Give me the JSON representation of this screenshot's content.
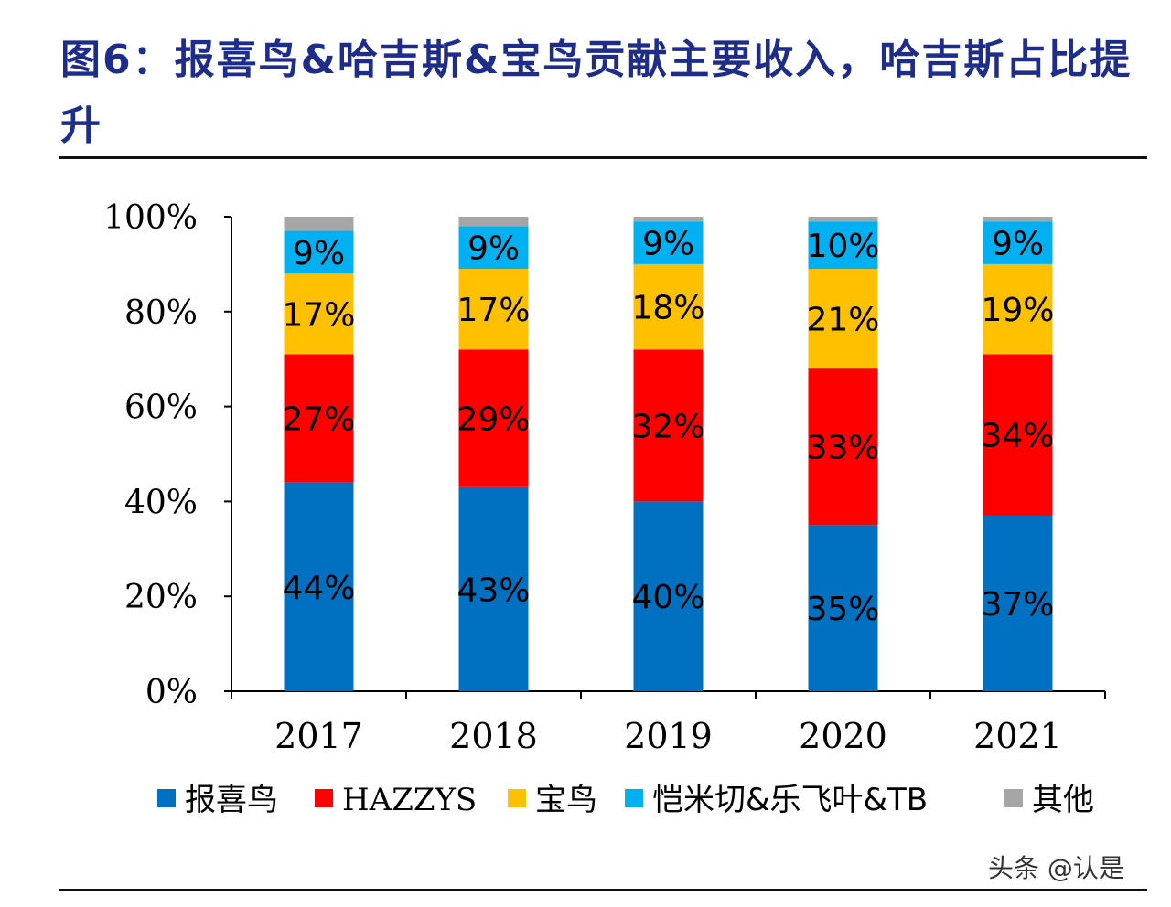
{
  "title": "图6：报喜鸟&哈吉斯&宝鸟贡献主要收入，哈吉斯占比提升",
  "watermark": "头条 @认是",
  "chart_data": {
    "type": "bar",
    "stacked": true,
    "categories": [
      "2017",
      "2018",
      "2019",
      "2020",
      "2021"
    ],
    "ylim": [
      0,
      100
    ],
    "yticks": [
      "0%",
      "20%",
      "40%",
      "60%",
      "80%",
      "100%"
    ],
    "legend_position": "bottom",
    "series": [
      {
        "name": "报喜鸟",
        "color": "#0070c0",
        "values": [
          44,
          43,
          40,
          35,
          37
        ],
        "labels": [
          "44%",
          "43%",
          "40%",
          "35%",
          "37%"
        ]
      },
      {
        "name": "HAZZYS",
        "color": "#ff0000",
        "values": [
          27,
          29,
          32,
          33,
          34
        ],
        "labels": [
          "27%",
          "29%",
          "32%",
          "33%",
          "34%"
        ]
      },
      {
        "name": "宝鸟",
        "color": "#ffc000",
        "values": [
          17,
          17,
          18,
          21,
          19
        ],
        "labels": [
          "17%",
          "17%",
          "18%",
          "21%",
          "19%"
        ]
      },
      {
        "name": "恺米切&乐飞叶&TB",
        "color": "#00b0f0",
        "values": [
          9,
          9,
          9,
          10,
          9
        ],
        "labels": [
          "9%",
          "9%",
          "9%",
          "10%",
          "9%"
        ]
      },
      {
        "name": "其他",
        "color": "#a6a6a6",
        "values": [
          3,
          2,
          1,
          1,
          1
        ],
        "labels": [
          "",
          "",
          "",
          "",
          ""
        ]
      }
    ]
  }
}
